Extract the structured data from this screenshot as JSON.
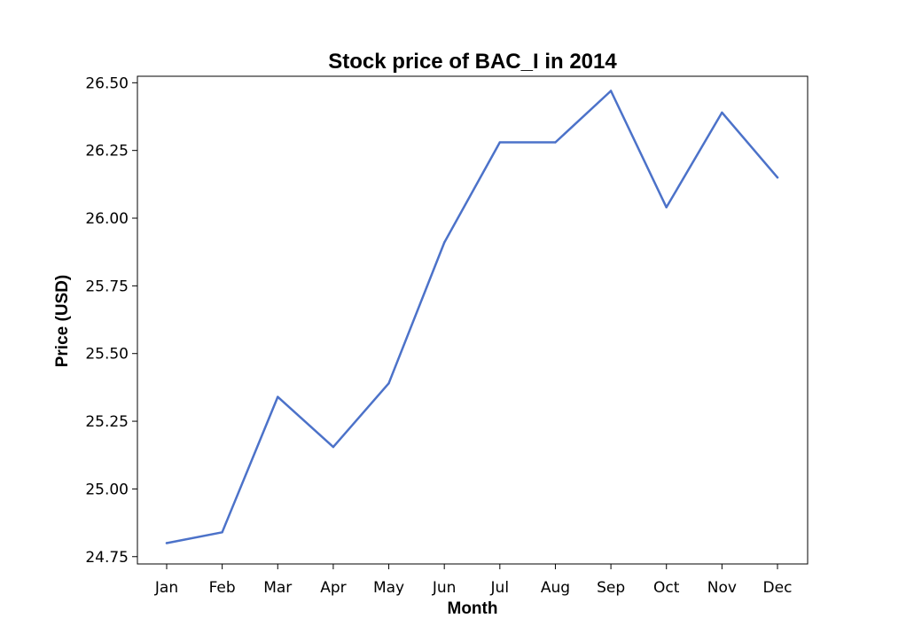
{
  "chart_data": {
    "type": "line",
    "title": "Stock price of BAC_I in 2014",
    "xlabel": "Month",
    "ylabel": "Price (USD)",
    "categories": [
      "Jan",
      "Feb",
      "Mar",
      "Apr",
      "May",
      "Jun",
      "Jul",
      "Aug",
      "Sep",
      "Oct",
      "Nov",
      "Dec"
    ],
    "series": [
      {
        "values": [
          24.8,
          24.84,
          25.34,
          25.155,
          25.39,
          25.91,
          26.28,
          26.28,
          26.47,
          26.04,
          26.39,
          26.15
        ],
        "color": "#4c72c9"
      }
    ],
    "yticks": [
      "24.75",
      "25.00",
      "25.25",
      "25.50",
      "25.75",
      "26.00",
      "26.25",
      "26.50"
    ],
    "ylim": [
      24.723,
      26.524
    ],
    "grid": false,
    "legend": false
  }
}
